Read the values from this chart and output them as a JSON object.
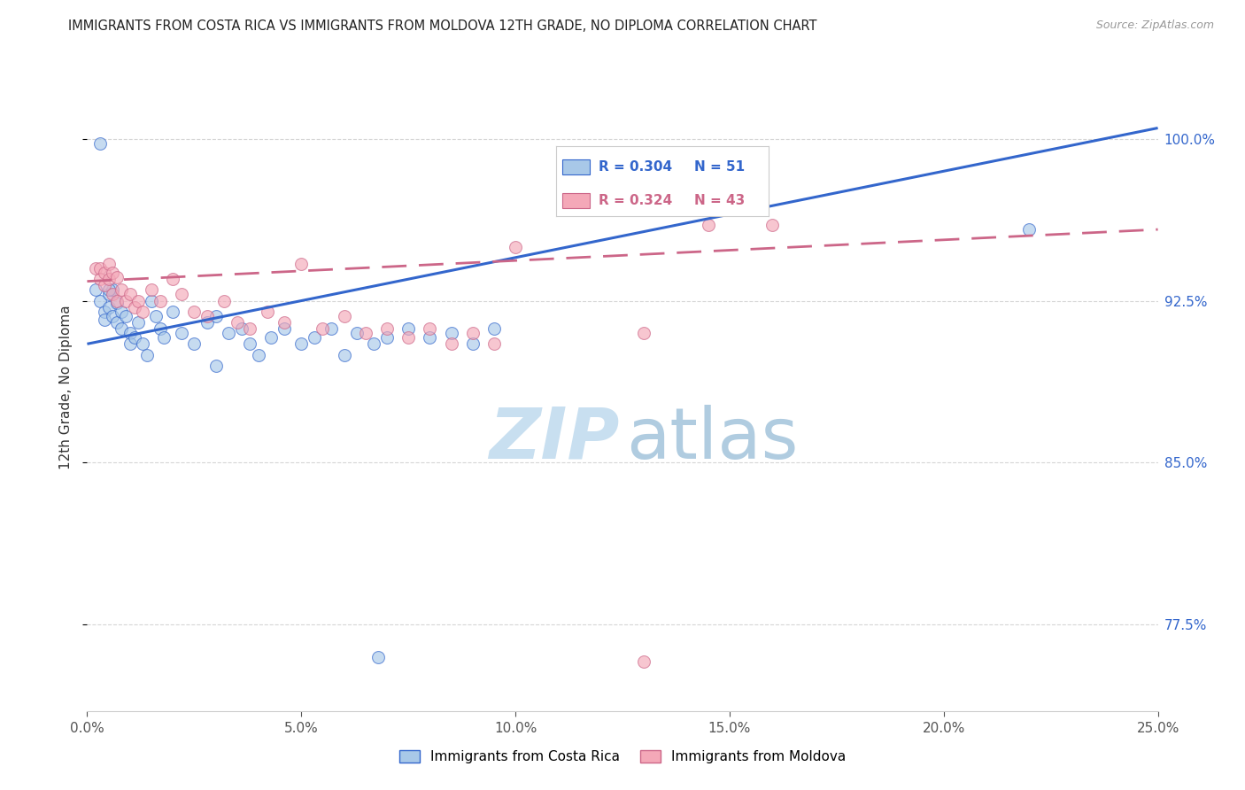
{
  "title": "IMMIGRANTS FROM COSTA RICA VS IMMIGRANTS FROM MOLDOVA 12TH GRADE, NO DIPLOMA CORRELATION CHART",
  "source_text": "Source: ZipAtlas.com",
  "ylabel_label": "12th Grade, No Diploma",
  "ytick_labels": [
    "77.5%",
    "85.0%",
    "92.5%",
    "100.0%"
  ],
  "ytick_values": [
    0.775,
    0.85,
    0.925,
    1.0
  ],
  "xlim": [
    0.0,
    0.25
  ],
  "ylim": [
    0.735,
    1.035
  ],
  "legend_r1": "R = 0.304",
  "legend_n1": "N = 51",
  "legend_r2": "R = 0.324",
  "legend_n2": "N = 43",
  "color_blue": "#a8c8e8",
  "color_pink": "#f4a8b8",
  "color_blue_line": "#3366cc",
  "color_pink_line": "#cc6688",
  "watermark_zip_color": "#c8dff0",
  "watermark_atlas_color": "#b0cce0",
  "blue_line_y0": 0.905,
  "blue_line_y1": 1.005,
  "pink_line_y0": 0.934,
  "pink_line_y1": 0.958,
  "costa_rica_x": [
    0.002,
    0.003,
    0.003,
    0.004,
    0.004,
    0.005,
    0.005,
    0.006,
    0.006,
    0.007,
    0.007,
    0.008,
    0.008,
    0.009,
    0.01,
    0.01,
    0.011,
    0.012,
    0.013,
    0.014,
    0.015,
    0.016,
    0.017,
    0.018,
    0.02,
    0.022,
    0.025,
    0.028,
    0.03,
    0.033,
    0.036,
    0.038,
    0.04,
    0.043,
    0.046,
    0.05,
    0.053,
    0.057,
    0.06,
    0.063,
    0.067,
    0.07,
    0.075,
    0.08,
    0.085,
    0.09,
    0.095,
    0.22,
    0.068,
    0.005,
    0.03
  ],
  "costa_rica_y": [
    0.93,
    0.998,
    0.925,
    0.92,
    0.916,
    0.928,
    0.922,
    0.93,
    0.918,
    0.924,
    0.915,
    0.92,
    0.912,
    0.918,
    0.91,
    0.905,
    0.908,
    0.915,
    0.905,
    0.9,
    0.925,
    0.918,
    0.912,
    0.908,
    0.92,
    0.91,
    0.905,
    0.915,
    0.918,
    0.91,
    0.912,
    0.905,
    0.9,
    0.908,
    0.912,
    0.905,
    0.908,
    0.912,
    0.9,
    0.91,
    0.905,
    0.908,
    0.912,
    0.908,
    0.91,
    0.905,
    0.912,
    0.958,
    0.76,
    0.93,
    0.895
  ],
  "moldova_x": [
    0.002,
    0.003,
    0.003,
    0.004,
    0.004,
    0.005,
    0.005,
    0.006,
    0.006,
    0.007,
    0.007,
    0.008,
    0.009,
    0.01,
    0.011,
    0.012,
    0.013,
    0.015,
    0.017,
    0.02,
    0.022,
    0.025,
    0.028,
    0.032,
    0.035,
    0.038,
    0.042,
    0.046,
    0.05,
    0.055,
    0.06,
    0.065,
    0.07,
    0.075,
    0.08,
    0.085,
    0.09,
    0.095,
    0.1,
    0.13,
    0.145,
    0.16,
    0.13
  ],
  "moldova_y": [
    0.94,
    0.94,
    0.935,
    0.938,
    0.932,
    0.942,
    0.935,
    0.938,
    0.928,
    0.936,
    0.925,
    0.93,
    0.925,
    0.928,
    0.922,
    0.925,
    0.92,
    0.93,
    0.925,
    0.935,
    0.928,
    0.92,
    0.918,
    0.925,
    0.915,
    0.912,
    0.92,
    0.915,
    0.942,
    0.912,
    0.918,
    0.91,
    0.912,
    0.908,
    0.912,
    0.905,
    0.91,
    0.905,
    0.95,
    0.758,
    0.96,
    0.96,
    0.91
  ]
}
